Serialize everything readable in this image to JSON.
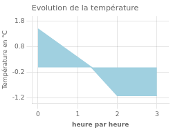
{
  "chart_data": {
    "type": "area",
    "title": "Evolution de la température",
    "xlabel": "heure par heure",
    "ylabel": "Température en °C",
    "x": [
      0,
      1.35,
      2.0,
      3.0
    ],
    "values": [
      1.5,
      0.0,
      -1.1,
      -1.1
    ],
    "color": "#a0d0e0",
    "xlim": [
      -0.15,
      3.3
    ],
    "ylim": [
      -1.4,
      2.0
    ],
    "xticks": [
      0,
      1,
      2,
      3
    ],
    "yticks": [
      -1.2,
      -0.2,
      0.8,
      1.8
    ],
    "grid": true
  }
}
